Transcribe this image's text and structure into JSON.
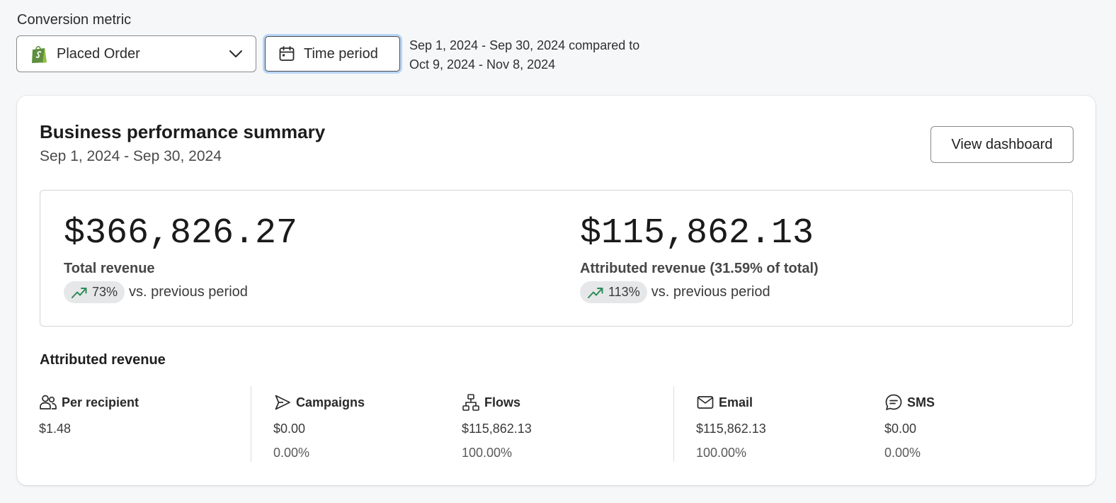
{
  "conversion_metric": {
    "label": "Conversion metric",
    "selected": "Placed Order"
  },
  "time_period": {
    "button_label": "Time period",
    "range_line1": "Sep 1, 2024 - Sep 30, 2024 compared to",
    "range_line2": "Oct 9, 2024 - Nov 8, 2024"
  },
  "summary": {
    "title": "Business performance summary",
    "date_range": "Sep 1, 2024 - Sep 30, 2024",
    "view_dashboard_label": "View dashboard",
    "total": {
      "value": "$366,826.27",
      "label": "Total revenue",
      "change": "73%",
      "vs_text": "vs. previous period"
    },
    "attributed": {
      "value": "$115,862.13",
      "label": "Attributed revenue (31.59% of total)",
      "change": "113%",
      "vs_text": "vs. previous period"
    }
  },
  "attributed_breakdown": {
    "title": "Attributed revenue",
    "columns": [
      {
        "label": "Per recipient",
        "icon": "people-icon",
        "value": "$1.48",
        "percent": ""
      },
      {
        "label": "Campaigns",
        "icon": "send-icon",
        "value": "$0.00",
        "percent": "0.00%"
      },
      {
        "label": "Flows",
        "icon": "flow-icon",
        "value": "$115,862.13",
        "percent": "100.00%"
      },
      {
        "label": "Email",
        "icon": "mail-icon",
        "value": "$115,862.13",
        "percent": "100.00%"
      },
      {
        "label": "SMS",
        "icon": "sms-icon",
        "value": "$0.00",
        "percent": "0.00%"
      }
    ]
  },
  "colors": {
    "trend_green": "#2e8b57",
    "shopify_green": "#5e8e3e",
    "focus_ring": "#b9d5f7"
  }
}
